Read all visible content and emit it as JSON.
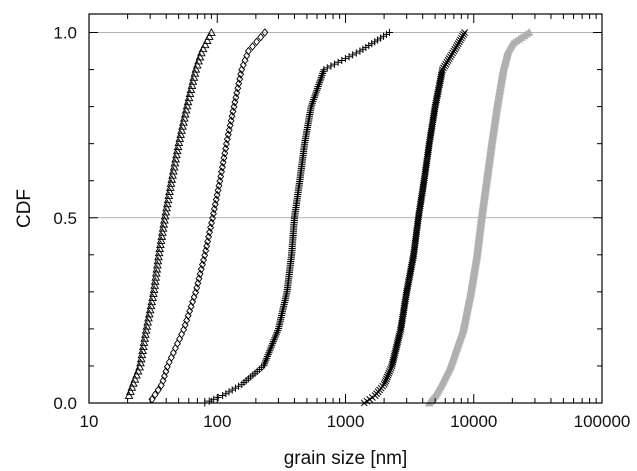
{
  "chart_data": {
    "type": "scatter",
    "title": "",
    "xlabel": "grain size [nm]",
    "ylabel": "CDF",
    "xscale": "log",
    "xlim": [
      10,
      100000
    ],
    "ylim": [
      0,
      1.05
    ],
    "xticks": [
      10,
      100,
      1000,
      10000,
      100000
    ],
    "xtick_labels": [
      "10",
      "100",
      "1000",
      "10000",
      "100000"
    ],
    "yticks": [
      0,
      0.5,
      1
    ],
    "ytick_labels": [
      "0.0",
      "0.5",
      "1.0"
    ],
    "grid": "horizontal lines at 0.5 and 1.0",
    "legend": "none",
    "series": [
      {
        "marker": "triangle",
        "color": "#000000",
        "quantiles": [
          [
            0.02,
            20.5
          ],
          [
            0.05,
            22
          ],
          [
            0.1,
            25
          ],
          [
            0.2,
            28
          ],
          [
            0.3,
            32
          ],
          [
            0.4,
            35
          ],
          [
            0.5,
            39
          ],
          [
            0.6,
            44
          ],
          [
            0.7,
            50
          ],
          [
            0.8,
            58
          ],
          [
            0.9,
            68
          ],
          [
            0.95,
            76
          ],
          [
            1.0,
            90
          ]
        ]
      },
      {
        "marker": "diamond",
        "color": "#000000",
        "quantiles": [
          [
            0.01,
            31
          ],
          [
            0.05,
            37
          ],
          [
            0.1,
            41
          ],
          [
            0.2,
            55
          ],
          [
            0.3,
            68
          ],
          [
            0.4,
            80
          ],
          [
            0.5,
            92
          ],
          [
            0.6,
            105
          ],
          [
            0.7,
            118
          ],
          [
            0.8,
            135
          ],
          [
            0.9,
            155
          ],
          [
            0.95,
            175
          ],
          [
            1.0,
            235
          ]
        ]
      },
      {
        "marker": "plus",
        "color": "#000000",
        "quantiles": [
          [
            0.0,
            80
          ],
          [
            0.02,
            110
          ],
          [
            0.05,
            155
          ],
          [
            0.1,
            230
          ],
          [
            0.2,
            300
          ],
          [
            0.3,
            350
          ],
          [
            0.4,
            380
          ],
          [
            0.5,
            400
          ],
          [
            0.6,
            440
          ],
          [
            0.7,
            480
          ],
          [
            0.8,
            540
          ],
          [
            0.9,
            680
          ],
          [
            0.95,
            1300
          ],
          [
            1.0,
            2200
          ]
        ]
      },
      {
        "marker": "cross",
        "color": "#000000",
        "quantiles": [
          [
            0.0,
            1400
          ],
          [
            0.02,
            1700
          ],
          [
            0.05,
            2000
          ],
          [
            0.1,
            2300
          ],
          [
            0.2,
            2700
          ],
          [
            0.3,
            3000
          ],
          [
            0.4,
            3400
          ],
          [
            0.5,
            3700
          ],
          [
            0.6,
            4100
          ],
          [
            0.7,
            4500
          ],
          [
            0.8,
            5000
          ],
          [
            0.9,
            5700
          ],
          [
            0.95,
            7000
          ],
          [
            1.0,
            8500
          ]
        ]
      },
      {
        "marker": "triangle-filled",
        "color": "#b0b0b0",
        "quantiles": [
          [
            0.0,
            4500
          ],
          [
            0.02,
            5000
          ],
          [
            0.05,
            5600
          ],
          [
            0.1,
            6600
          ],
          [
            0.2,
            8300
          ],
          [
            0.3,
            9500
          ],
          [
            0.4,
            10600
          ],
          [
            0.5,
            11500
          ],
          [
            0.6,
            12600
          ],
          [
            0.7,
            13800
          ],
          [
            0.8,
            15200
          ],
          [
            0.9,
            17000
          ],
          [
            0.95,
            18500
          ],
          [
            0.97,
            20000
          ],
          [
            1.0,
            27000
          ]
        ]
      }
    ]
  }
}
